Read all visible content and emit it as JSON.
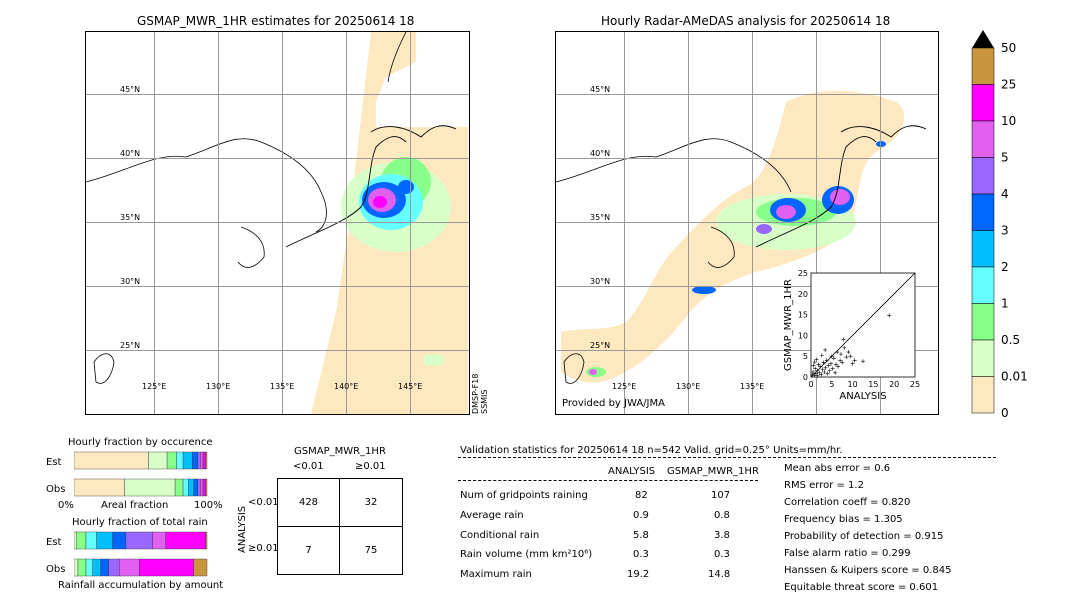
{
  "left_map": {
    "title": "GSMAP_MWR_1HR estimates for 20250614 18",
    "lat_labels": [
      "45°N",
      "40°N",
      "35°N",
      "30°N",
      "25°N"
    ],
    "lon_labels": [
      "125°E",
      "130°E",
      "135°E",
      "140°E",
      "145°E"
    ],
    "side_note_line1": "DMSP-F18",
    "side_note_line2": "SSMIS"
  },
  "right_map": {
    "title": "Hourly Radar-AMeDAS analysis for 20250614 18",
    "lat_labels": [
      "45°N",
      "40°N",
      "35°N",
      "30°N",
      "25°N"
    ],
    "lon_labels": [
      "125°E",
      "130°E",
      "135°E"
    ],
    "provider": "Provided by JWA/JMA"
  },
  "colorbar": {
    "labels": [
      "50",
      "25",
      "10",
      "5",
      "4",
      "3",
      "2",
      "1",
      "0.5",
      "0.01",
      "0"
    ],
    "colors": [
      "#c8963c",
      "#ff00ff",
      "#e060f0",
      "#9966ff",
      "#0066ff",
      "#00bfff",
      "#66ffff",
      "#88ff88",
      "#d8ffc8",
      "#fde8c0"
    ]
  },
  "fraction": {
    "occurrence_title": "Hourly fraction by occurence",
    "total_title": "Hourly fraction of total rain",
    "row_est": "Est",
    "row_obs": "Obs",
    "axis_left": "0%",
    "axis_mid": "Areal fraction",
    "axis_right": "100%",
    "footer": "Rainfall accumulation by amount"
  },
  "contingency": {
    "title": "GSMAP_MWR_1HR",
    "col1": "<0.01",
    "col2": "≥0.01",
    "ylabel": "ANALYSIS",
    "row1": "<0.01",
    "row2": "≥0.01",
    "cells": [
      "428",
      "32",
      "7",
      "75"
    ]
  },
  "validation": {
    "header": "Validation statistics for 20250614 18  n=542 Valid. grid=0.25° Units=mm/hr.",
    "col_analysis": "ANALYSIS",
    "col_gsmap": "GSMAP_MWR_1HR",
    "rows": [
      {
        "label": "Num of gridpoints raining",
        "a": "82",
        "g": "107"
      },
      {
        "label": "Average rain",
        "a": "0.9",
        "g": "0.8"
      },
      {
        "label": "Conditional rain",
        "a": "5.8",
        "g": "3.8"
      },
      {
        "label": "Rain volume (mm km²10⁶)",
        "a": "0.3",
        "g": "0.3"
      },
      {
        "label": "Maximum rain",
        "a": "19.2",
        "g": "14.8"
      }
    ],
    "scores": [
      "Mean abs error =    0.6",
      "RMS error =    1.2",
      "Correlation coeff =  0.820",
      "Frequency bias =  1.305",
      "Probability of detection =  0.915",
      "False alarm ratio =  0.299",
      "Hanssen & Kuipers score =  0.845",
      "Equitable threat score =  0.601"
    ]
  },
  "chart_data": [
    {
      "type": "scatter",
      "xlabel": "ANALYSIS",
      "ylabel": "GSMAP_MWR_1HR",
      "xlim": [
        0,
        25
      ],
      "ylim": [
        0,
        25
      ],
      "ticks": [
        "0",
        "5",
        "10",
        "15",
        "20",
        "25"
      ],
      "points": [
        [
          0.3,
          0.5
        ],
        [
          0.5,
          1.2
        ],
        [
          0.8,
          0.4
        ],
        [
          1,
          2
        ],
        [
          1.2,
          0.8
        ],
        [
          1.5,
          1.5
        ],
        [
          1.8,
          3
        ],
        [
          2,
          1
        ],
        [
          2.2,
          2.5
        ],
        [
          2.5,
          0.6
        ],
        [
          2.8,
          1.8
        ],
        [
          3,
          3.5
        ],
        [
          3.2,
          1.2
        ],
        [
          3.5,
          2.2
        ],
        [
          3.8,
          4
        ],
        [
          4,
          0.8
        ],
        [
          4.2,
          2.8
        ],
        [
          4.5,
          1.5
        ],
        [
          4.8,
          3.2
        ],
        [
          5,
          5
        ],
        [
          5.2,
          2
        ],
        [
          5.5,
          4.5
        ],
        [
          5.8,
          1
        ],
        [
          6,
          3
        ],
        [
          6.3,
          6
        ],
        [
          6.5,
          2.5
        ],
        [
          7,
          4
        ],
        [
          7.2,
          5.5
        ],
        [
          7.5,
          3.5
        ],
        [
          8,
          7
        ],
        [
          8.5,
          4.8
        ],
        [
          9,
          6
        ],
        [
          9.5,
          5
        ],
        [
          10,
          3.2
        ],
        [
          10.5,
          4
        ],
        [
          12.5,
          3.8
        ],
        [
          18.8,
          14.8
        ],
        [
          0.6,
          2.8
        ],
        [
          1.3,
          4.2
        ],
        [
          2.6,
          5.2
        ],
        [
          3.4,
          6.5
        ],
        [
          7.8,
          9
        ],
        [
          1.6,
          0.3
        ],
        [
          0.9,
          3.6
        ]
      ]
    },
    {
      "type": "bar",
      "title": "Hourly fraction by occurence",
      "categories": [
        "Est",
        "Obs"
      ],
      "series": [
        {
          "name": "0",
          "values": [
            0.56,
            0.38
          ]
        },
        {
          "name": "0.01",
          "values": [
            0.14,
            0.38
          ]
        },
        {
          "name": "0.5",
          "values": [
            0.07,
            0.06
          ]
        },
        {
          "name": "1",
          "values": [
            0.05,
            0.04
          ]
        },
        {
          "name": "2",
          "values": [
            0.07,
            0.04
          ]
        },
        {
          "name": "3",
          "values": [
            0.04,
            0.03
          ]
        },
        {
          "name": "4",
          "values": [
            0.02,
            0.02
          ]
        },
        {
          "name": "5",
          "values": [
            0.02,
            0.02
          ]
        },
        {
          "name": "10",
          "values": [
            0.02,
            0.02
          ]
        },
        {
          "name": "25",
          "values": [
            0.01,
            0.01
          ]
        }
      ]
    },
    {
      "type": "bar",
      "title": "Hourly fraction of total rain",
      "categories": [
        "Est",
        "Obs"
      ],
      "series": [
        {
          "name": "0",
          "values": [
            0,
            0
          ]
        },
        {
          "name": "0.01",
          "values": [
            0.02,
            0.03
          ]
        },
        {
          "name": "0.5",
          "values": [
            0.07,
            0.06
          ]
        },
        {
          "name": "1",
          "values": [
            0.08,
            0.05
          ]
        },
        {
          "name": "2",
          "values": [
            0.12,
            0.06
          ]
        },
        {
          "name": "3",
          "values": [
            0.1,
            0.06
          ]
        },
        {
          "name": "4",
          "values": [
            0.2,
            0.08
          ]
        },
        {
          "name": "5",
          "values": [
            0.1,
            0.15
          ]
        },
        {
          "name": "10",
          "values": [
            0.3,
            0.41
          ]
        },
        {
          "name": "25",
          "values": [
            0.01,
            0.1
          ]
        }
      ]
    }
  ]
}
